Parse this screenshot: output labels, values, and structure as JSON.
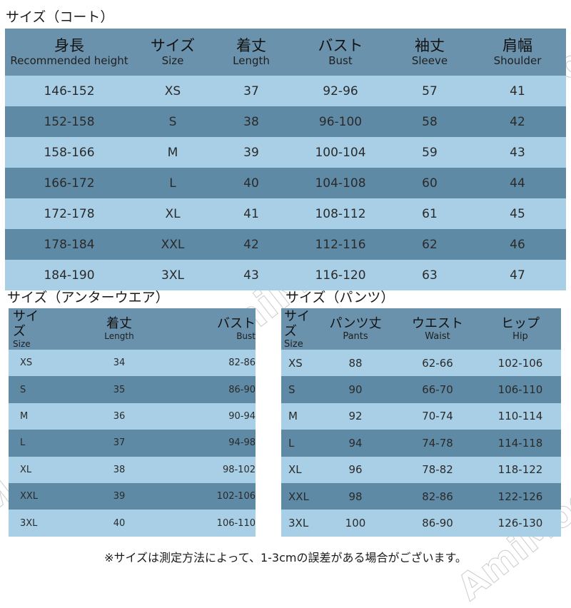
{
  "colors": {
    "dark_row": "#5f8aa5",
    "light_row": "#a8cfe6",
    "header": "#6b92ac"
  },
  "coat": {
    "title": "サイズ（コート）",
    "headers": [
      {
        "jp": "身長",
        "en": "Recommended height"
      },
      {
        "jp": "サイズ",
        "en": "Size"
      },
      {
        "jp": "着丈",
        "en": "Length"
      },
      {
        "jp": "バスト",
        "en": "Bust"
      },
      {
        "jp": "袖丈",
        "en": "Sleeve"
      },
      {
        "jp": "肩幅",
        "en": "Shoulder"
      }
    ],
    "rows": [
      [
        "146-152",
        "XS",
        "37",
        "92-96",
        "57",
        "41"
      ],
      [
        "152-158",
        "S",
        "38",
        "96-100",
        "58",
        "42"
      ],
      [
        "158-166",
        "M",
        "39",
        "100-104",
        "59",
        "43"
      ],
      [
        "166-172",
        "L",
        "40",
        "104-108",
        "60",
        "44"
      ],
      [
        "172-178",
        "XL",
        "41",
        "108-112",
        "61",
        "45"
      ],
      [
        "178-184",
        "XXL",
        "42",
        "112-116",
        "62",
        "46"
      ],
      [
        "184-190",
        "3XL",
        "43",
        "116-120",
        "63",
        "47"
      ]
    ]
  },
  "under": {
    "title": "サイズ（アンターウエア）",
    "headers": [
      {
        "jp": "サイズ",
        "en": "Size"
      },
      {
        "jp": "着丈",
        "en": "Length"
      },
      {
        "jp": "バスト",
        "en": "Bust"
      }
    ],
    "rows": [
      [
        "XS",
        "34",
        "82-86"
      ],
      [
        "S",
        "35",
        "86-90"
      ],
      [
        "M",
        "36",
        "90-94"
      ],
      [
        "L",
        "37",
        "94-98"
      ],
      [
        "XL",
        "38",
        "98-102"
      ],
      [
        "XXL",
        "39",
        "102-106"
      ],
      [
        "3XL",
        "40",
        "106-110"
      ]
    ]
  },
  "pants": {
    "title": "サイズ（パンツ）",
    "headers": [
      {
        "jp": "サイズ",
        "en": "Size"
      },
      {
        "jp": "パンツ丈",
        "en": "Pants"
      },
      {
        "jp": "ウエスト",
        "en": "Waist"
      },
      {
        "jp": "ヒップ",
        "en": "Hip"
      }
    ],
    "rows": [
      [
        "XS",
        "88",
        "62-66",
        "102-106"
      ],
      [
        "S",
        "90",
        "66-70",
        "106-110"
      ],
      [
        "M",
        "92",
        "70-74",
        "110-114"
      ],
      [
        "L",
        "94",
        "74-78",
        "114-118"
      ],
      [
        "XL",
        "96",
        "78-82",
        "118-122"
      ],
      [
        "XXL",
        "98",
        "82-86",
        "122-126"
      ],
      [
        "3XL",
        "100",
        "86-90",
        "126-130"
      ]
    ]
  },
  "note": "※サイズは測定方法によって、1-3cmの誤差がある場合がございます。",
  "watermark": "AmiMode"
}
